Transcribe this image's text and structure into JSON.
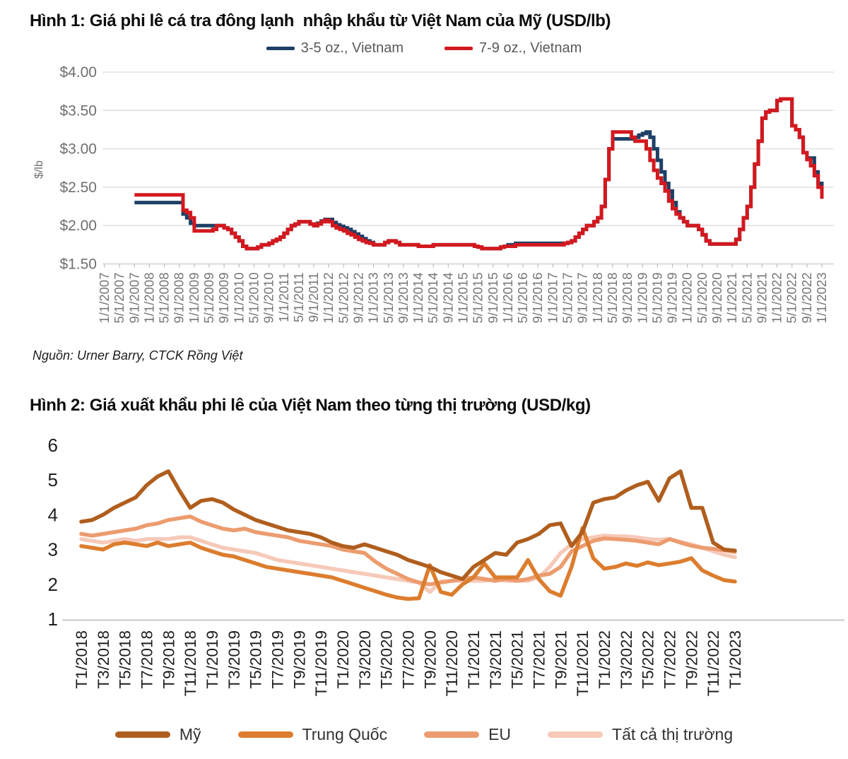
{
  "source_note": "Nguồn: Urner Barry, CTCK Rồng Việt",
  "chart_data": [
    {
      "type": "line",
      "title": "Hình 1: Giá phi lê cá tra đông lạnh  nhập khẩu từ Việt Nam của Mỹ (USD/lb)",
      "ylabel": "$/lb",
      "ylim": [
        1.5,
        4.0
      ],
      "grid": "horizontal",
      "legend_position": "top",
      "y_ticks": [
        {
          "label": "$4.00",
          "value": 4.0
        },
        {
          "label": "$3.50",
          "value": 3.5
        },
        {
          "label": "$3.00",
          "value": 3.0
        },
        {
          "label": "$2.50",
          "value": 2.5
        },
        {
          "label": "$2.00",
          "value": 2.0
        },
        {
          "label": "$1.50",
          "value": 1.5
        }
      ],
      "x_months_total": 192,
      "x_tick_every_months": 4,
      "x_tick_labels": [
        "1/1/2007",
        "5/1/2007",
        "9/1/2007",
        "1/1/2008",
        "5/1/2008",
        "9/1/2008",
        "1/1/2009",
        "5/1/2009",
        "9/1/2009",
        "1/1/2010",
        "5/1/2010",
        "9/1/2010",
        "1/1/2011",
        "5/1/2011",
        "9/1/2011",
        "1/1/2012",
        "5/1/2012",
        "9/1/2012",
        "1/1/2013",
        "5/1/2013",
        "9/1/2013",
        "1/1/2014",
        "5/1/2014",
        "9/1/2014",
        "1/1/2015",
        "5/1/2015",
        "9/1/2015",
        "1/1/2016",
        "5/1/2016",
        "9/1/2016",
        "1/1/2017",
        "5/1/2017",
        "9/1/2017",
        "1/1/2018",
        "5/1/2018",
        "9/1/2018",
        "1/1/2019",
        "5/1/2019",
        "9/1/2019",
        "1/1/2020",
        "5/1/2020",
        "9/1/2020",
        "1/1/2021",
        "5/1/2021",
        "9/1/2021",
        "1/1/2022",
        "5/1/2022",
        "9/1/2022",
        "1/1/2023"
      ],
      "series": [
        {
          "name": "3-5 oz., Vietnam",
          "color": "#1E4066",
          "start_month": 8,
          "values": [
            2.3,
            2.3,
            2.3,
            2.3,
            2.3,
            2.3,
            2.3,
            2.3,
            2.3,
            2.3,
            2.3,
            2.3,
            2.3,
            2.15,
            2.1,
            2.03,
            2.0,
            2.0,
            2.0,
            2.0,
            2.0,
            2.0,
            2.0,
            2.0,
            1.97,
            1.95,
            1.9,
            1.85,
            1.8,
            1.73,
            1.7,
            1.7,
            1.7,
            1.72,
            1.75,
            1.75,
            1.77,
            1.8,
            1.82,
            1.85,
            1.9,
            1.95,
            2.0,
            2.02,
            2.05,
            2.05,
            2.05,
            2.02,
            2.0,
            2.03,
            2.06,
            2.08,
            2.08,
            2.04,
            2.01,
            1.99,
            1.97,
            1.95,
            1.92,
            1.89,
            1.86,
            1.83,
            1.8,
            1.78,
            1.75,
            1.75,
            1.75,
            1.78,
            1.8,
            1.8,
            1.78,
            1.75,
            1.75,
            1.75,
            1.75,
            1.75,
            1.73,
            1.73,
            1.73,
            1.73,
            1.75,
            1.75,
            1.75,
            1.75,
            1.75,
            1.75,
            1.75,
            1.75,
            1.75,
            1.75,
            1.75,
            1.73,
            1.72,
            1.7,
            1.7,
            1.7,
            1.7,
            1.7,
            1.72,
            1.73,
            1.75,
            1.75,
            1.77,
            1.77,
            1.77,
            1.77,
            1.77,
            1.77,
            1.77,
            1.77,
            1.77,
            1.77,
            1.77,
            1.77,
            1.77,
            1.77,
            1.78,
            1.8,
            1.85,
            1.9,
            1.95,
            2.0,
            2.0,
            2.05,
            2.1,
            2.25,
            2.6,
            3.0,
            3.13,
            3.13,
            3.13,
            3.13,
            3.13,
            3.13,
            3.15,
            3.18,
            3.2,
            3.22,
            3.15,
            3.0,
            2.85,
            2.7,
            2.55,
            2.45,
            2.3,
            2.18,
            2.1,
            2.05,
            2.0,
            2.0,
            2.0,
            1.95,
            1.88,
            1.8,
            1.76,
            1.76,
            1.76,
            1.76,
            1.76,
            1.76,
            1.76,
            1.82,
            1.95,
            2.1,
            2.25,
            2.5,
            2.8,
            3.1,
            3.4,
            3.48,
            3.5,
            3.5,
            3.63,
            3.65,
            3.65,
            3.65,
            3.3,
            3.25,
            3.15,
            2.95,
            2.88,
            2.88,
            2.7,
            2.55,
            2.4
          ]
        },
        {
          "name": "7-9 oz., Vietnam",
          "color": "#D2191F",
          "start_month": 8,
          "values": [
            2.4,
            2.4,
            2.4,
            2.4,
            2.4,
            2.4,
            2.4,
            2.4,
            2.4,
            2.4,
            2.4,
            2.4,
            2.4,
            2.2,
            2.17,
            2.1,
            1.93,
            1.93,
            1.93,
            1.93,
            1.93,
            1.95,
            2.0,
            2.0,
            1.97,
            1.95,
            1.9,
            1.85,
            1.8,
            1.73,
            1.7,
            1.7,
            1.7,
            1.72,
            1.75,
            1.75,
            1.77,
            1.8,
            1.82,
            1.85,
            1.9,
            1.95,
            2.0,
            2.02,
            2.05,
            2.05,
            2.05,
            2.02,
            2.0,
            2.02,
            2.05,
            2.07,
            2.05,
            2.0,
            1.97,
            1.95,
            1.93,
            1.9,
            1.88,
            1.85,
            1.82,
            1.8,
            1.78,
            1.77,
            1.75,
            1.75,
            1.75,
            1.78,
            1.8,
            1.8,
            1.78,
            1.75,
            1.75,
            1.75,
            1.75,
            1.75,
            1.73,
            1.73,
            1.73,
            1.73,
            1.75,
            1.75,
            1.75,
            1.75,
            1.75,
            1.75,
            1.75,
            1.75,
            1.75,
            1.75,
            1.75,
            1.73,
            1.72,
            1.7,
            1.7,
            1.7,
            1.7,
            1.7,
            1.72,
            1.73,
            1.73,
            1.73,
            1.75,
            1.75,
            1.75,
            1.75,
            1.75,
            1.75,
            1.75,
            1.75,
            1.75,
            1.75,
            1.75,
            1.75,
            1.75,
            1.77,
            1.78,
            1.8,
            1.85,
            1.9,
            1.95,
            2.0,
            2.0,
            2.05,
            2.1,
            2.25,
            2.6,
            3.0,
            3.22,
            3.22,
            3.22,
            3.22,
            3.22,
            3.15,
            3.1,
            3.1,
            3.1,
            3.0,
            2.85,
            2.72,
            2.62,
            2.55,
            2.45,
            2.32,
            2.22,
            2.15,
            2.1,
            2.05,
            2.0,
            2.0,
            2.0,
            1.95,
            1.88,
            1.8,
            1.76,
            1.76,
            1.76,
            1.76,
            1.76,
            1.76,
            1.76,
            1.82,
            1.95,
            2.1,
            2.25,
            2.5,
            2.8,
            3.1,
            3.4,
            3.48,
            3.5,
            3.5,
            3.63,
            3.65,
            3.65,
            3.65,
            3.3,
            3.25,
            3.15,
            2.95,
            2.86,
            2.78,
            2.65,
            2.5,
            2.35
          ]
        }
      ]
    },
    {
      "type": "line",
      "title": "Hình 2: Giá xuất khẩu phi lê của Việt Nam theo từng thị trường (USD/kg)",
      "ylabel": "",
      "ylim": [
        1,
        6
      ],
      "grid": "none",
      "legend_position": "bottom",
      "y_ticks": [
        {
          "label": "6",
          "value": 6
        },
        {
          "label": "5",
          "value": 5
        },
        {
          "label": "4",
          "value": 4
        },
        {
          "label": "3",
          "value": 3
        },
        {
          "label": "2",
          "value": 2
        },
        {
          "label": "1",
          "value": 1
        }
      ],
      "x_months_total": 60,
      "x_tick_every_months": 2,
      "x_tick_labels": [
        "T1/2018",
        "T3/2018",
        "T5/2018",
        "T7/2018",
        "T9/2018",
        "T11/2018",
        "T1/2019",
        "T3/2019",
        "T5/2019",
        "T7/2019",
        "T9/2019",
        "T11/2019",
        "T1/2020",
        "T3/2020",
        "T5/2020",
        "T7/2020",
        "T9/2020",
        "T11/2020",
        "T1/2021",
        "T3/2021",
        "T5/2021",
        "T7/2021",
        "T9/2021",
        "T11/2021",
        "T1/2022",
        "T3/2022",
        "T5/2022",
        "T7/2022",
        "T9/2022",
        "T11/2022",
        "T1/2023"
      ],
      "series": [
        {
          "name": "Mỹ",
          "color": "#B05E1E",
          "start_month": 0,
          "values": [
            3.8,
            3.85,
            4.0,
            4.2,
            4.35,
            4.5,
            4.85,
            5.1,
            5.25,
            4.7,
            4.2,
            4.4,
            4.45,
            4.35,
            4.15,
            4.0,
            3.85,
            3.75,
            3.65,
            3.55,
            3.5,
            3.45,
            3.35,
            3.2,
            3.1,
            3.05,
            3.15,
            3.05,
            2.95,
            2.85,
            2.7,
            2.6,
            2.5,
            2.35,
            2.25,
            2.15,
            2.5,
            2.7,
            2.9,
            2.85,
            3.2,
            3.3,
            3.45,
            3.7,
            3.75,
            3.1,
            3.5,
            4.35,
            4.45,
            4.5,
            4.7,
            4.85,
            4.95,
            4.4,
            5.05,
            5.25,
            4.2,
            4.2,
            3.2,
            3.0,
            2.97
          ]
        },
        {
          "name": "Trung Quốc",
          "color": "#DC7D2E",
          "start_month": 0,
          "values": [
            3.1,
            3.05,
            3.0,
            3.15,
            3.2,
            3.15,
            3.1,
            3.2,
            3.1,
            3.15,
            3.2,
            3.05,
            2.95,
            2.85,
            2.8,
            2.7,
            2.6,
            2.5,
            2.45,
            2.4,
            2.35,
            2.3,
            2.25,
            2.2,
            2.1,
            2.0,
            1.9,
            1.8,
            1.7,
            1.62,
            1.58,
            1.6,
            2.55,
            1.78,
            1.7,
            2.0,
            2.2,
            2.6,
            2.2,
            2.2,
            2.2,
            2.7,
            2.15,
            1.8,
            1.67,
            2.5,
            3.62,
            2.75,
            2.45,
            2.5,
            2.6,
            2.53,
            2.63,
            2.55,
            2.6,
            2.65,
            2.75,
            2.4,
            2.25,
            2.12,
            2.08
          ]
        },
        {
          "name": "EU",
          "color": "#EC9C6E",
          "start_month": 0,
          "values": [
            3.45,
            3.4,
            3.45,
            3.5,
            3.55,
            3.6,
            3.7,
            3.75,
            3.85,
            3.9,
            3.95,
            3.8,
            3.7,
            3.6,
            3.55,
            3.6,
            3.5,
            3.45,
            3.4,
            3.35,
            3.25,
            3.2,
            3.15,
            3.1,
            3.0,
            2.95,
            2.9,
            2.65,
            2.45,
            2.3,
            2.15,
            2.05,
            2.0,
            2.05,
            2.1,
            2.15,
            2.2,
            2.15,
            2.1,
            2.15,
            2.1,
            2.15,
            2.25,
            2.3,
            2.5,
            2.95,
            3.1,
            3.25,
            3.32,
            3.3,
            3.28,
            3.25,
            3.2,
            3.15,
            3.3,
            3.2,
            3.11,
            3.05,
            3.02,
            2.98,
            2.93
          ]
        },
        {
          "name": "Tất cả thị trường",
          "color": "#F6C9B9",
          "start_month": 0,
          "values": [
            3.3,
            3.25,
            3.2,
            3.25,
            3.3,
            3.25,
            3.3,
            3.3,
            3.3,
            3.35,
            3.35,
            3.25,
            3.15,
            3.05,
            3.0,
            2.95,
            2.9,
            2.8,
            2.7,
            2.65,
            2.6,
            2.55,
            2.5,
            2.45,
            2.4,
            2.35,
            2.3,
            2.25,
            2.2,
            2.15,
            2.1,
            2.05,
            1.78,
            2.08,
            2.1,
            2.1,
            2.1,
            2.1,
            2.15,
            2.1,
            2.1,
            2.1,
            2.2,
            2.5,
            2.9,
            3.15,
            3.3,
            3.35,
            3.4,
            3.38,
            3.38,
            3.35,
            3.3,
            3.28,
            3.3,
            3.22,
            3.15,
            3.05,
            2.95,
            2.85,
            2.78
          ]
        }
      ]
    }
  ]
}
